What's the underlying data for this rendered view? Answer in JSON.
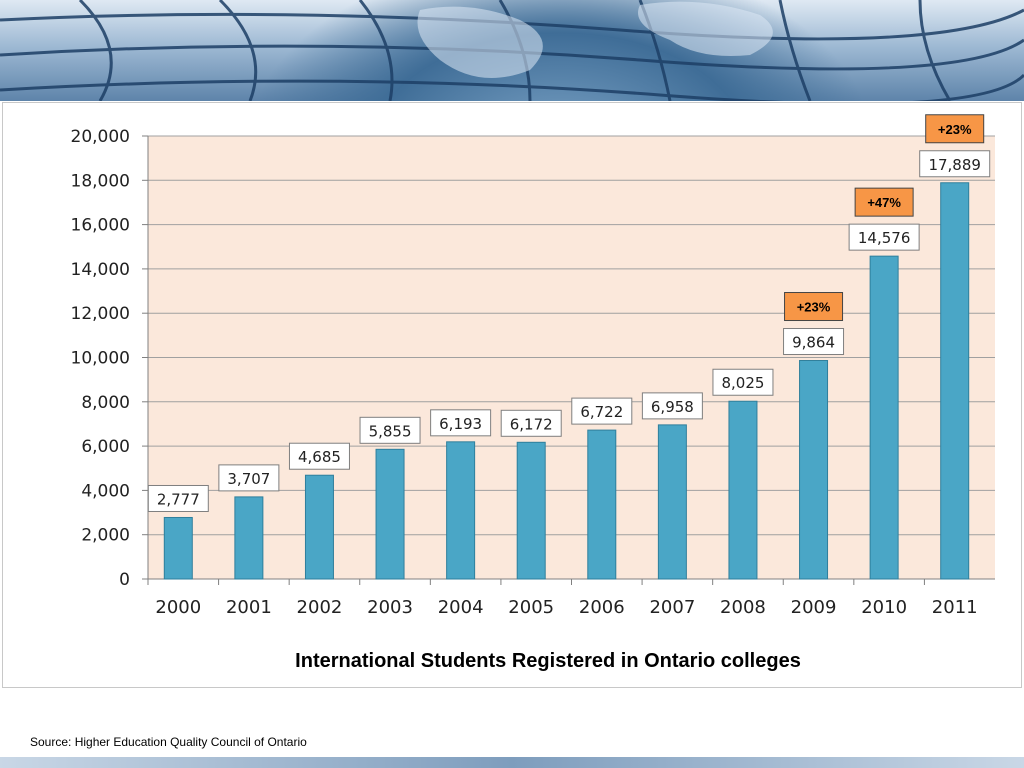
{
  "slide": {
    "caption": "International Students Registered in Ontario colleges",
    "source": "Source: Higher Education Quality Council of Ontario"
  },
  "chart_data": {
    "type": "bar",
    "title": "International Students Registered in Ontario colleges",
    "xlabel": "",
    "ylabel": "",
    "categories": [
      "2000",
      "2001",
      "2002",
      "2003",
      "2004",
      "2005",
      "2006",
      "2007",
      "2008",
      "2009",
      "2010",
      "2011"
    ],
    "values": [
      2777,
      3707,
      4685,
      5855,
      6193,
      6172,
      6722,
      6958,
      8025,
      9864,
      14576,
      17889
    ],
    "data_labels": [
      "2,777",
      "3,707",
      "4,685",
      "5,855",
      "6,193",
      "6,172",
      "6,722",
      "6,958",
      "8,025",
      "9,864",
      "14,576",
      "17,889"
    ],
    "ylim": [
      0,
      20000
    ],
    "yticks": [
      "0",
      "2,000",
      "4,000",
      "6,000",
      "8,000",
      "10,000",
      "12,000",
      "14,000",
      "16,000",
      "18,000",
      "20,000"
    ],
    "grid": true,
    "growth_annotations": [
      {
        "category": "2009",
        "label": "+23%"
      },
      {
        "category": "2010",
        "label": "+47%"
      },
      {
        "category": "2011",
        "label": "+23%"
      }
    ],
    "colors": {
      "bar": "#4aa6c6",
      "bar_edge": "#2f7f9c",
      "plot_bg": "#fbe8db",
      "grid": "#a0a0a0",
      "annotation_bg": "#f79646"
    }
  }
}
